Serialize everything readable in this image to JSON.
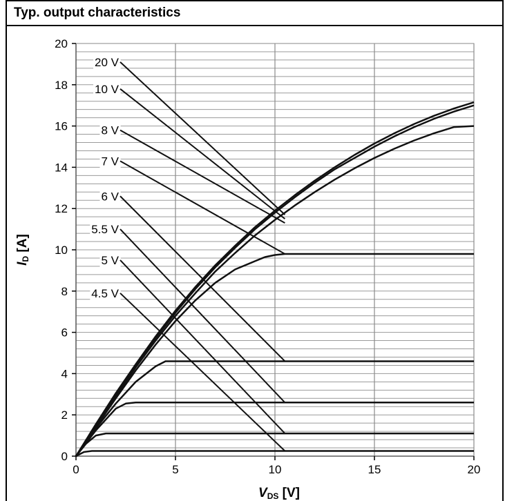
{
  "chart_data": {
    "type": "line",
    "title": "Typ. output characteristics",
    "xlabel": {
      "main": "V",
      "sub": "DS",
      "unit": " [V]"
    },
    "ylabel": {
      "main": "I",
      "sub": "D",
      "unit": " [A]"
    },
    "xlim": [
      0,
      20
    ],
    "ylim": [
      0,
      20
    ],
    "x_ticks": [
      "0",
      "5",
      "10",
      "15",
      "20"
    ],
    "y_ticks": [
      "0",
      "2",
      "4",
      "6",
      "8",
      "10",
      "12",
      "14",
      "16",
      "18",
      "20"
    ],
    "x_tick_values": [
      0,
      5,
      10,
      15,
      20
    ],
    "y_tick_values": [
      0,
      2,
      4,
      6,
      8,
      10,
      12,
      14,
      16,
      18,
      20
    ],
    "grid": {
      "major_x": true,
      "major_y": true,
      "minor_y_step": 0.4
    },
    "series": [
      {
        "name": "20 V",
        "label_y": 19.1,
        "pointer_to": [
          10.5,
          11.7
        ],
        "x": [
          0,
          1,
          2,
          3,
          4,
          5,
          6,
          7,
          8,
          9,
          10,
          11,
          12,
          13,
          14,
          15,
          16,
          17,
          18,
          19,
          20
        ],
        "y": [
          0,
          1.55,
          3.05,
          4.45,
          5.8,
          7.05,
          8.2,
          9.25,
          10.2,
          11.1,
          11.9,
          12.65,
          13.35,
          14.0,
          14.6,
          15.15,
          15.65,
          16.1,
          16.5,
          16.85,
          17.15
        ]
      },
      {
        "name": "10 V",
        "label_y": 17.8,
        "pointer_to": [
          10.5,
          11.5
        ],
        "x": [
          0,
          1,
          2,
          3,
          4,
          5,
          6,
          7,
          8,
          9,
          10,
          11,
          12,
          13,
          14,
          15,
          16,
          17,
          18,
          19,
          20
        ],
        "y": [
          0,
          1.5,
          3.0,
          4.4,
          5.72,
          6.95,
          8.1,
          9.15,
          10.1,
          11.0,
          11.8,
          12.55,
          13.25,
          13.9,
          14.45,
          15.0,
          15.5,
          15.95,
          16.35,
          16.7,
          17.0
        ]
      },
      {
        "name": "8 V",
        "label_y": 15.8,
        "pointer_to": [
          10.5,
          11.3
        ],
        "x": [
          0,
          1,
          2,
          3,
          4,
          5,
          6,
          7,
          8,
          9,
          10,
          11,
          12,
          13,
          14,
          15,
          16,
          17,
          18,
          19,
          20
        ],
        "y": [
          0,
          1.45,
          2.9,
          4.3,
          5.6,
          6.8,
          7.9,
          8.95,
          9.85,
          10.7,
          11.45,
          12.15,
          12.8,
          13.4,
          13.95,
          14.45,
          14.9,
          15.3,
          15.65,
          15.95,
          16.0
        ]
      },
      {
        "name": "7 V",
        "label_y": 14.3,
        "pointer_to": [
          10.5,
          9.8
        ],
        "x": [
          0,
          1,
          2,
          3,
          4,
          5,
          6,
          7,
          8,
          9,
          9.5,
          10,
          10.5,
          20
        ],
        "y": [
          0,
          1.4,
          2.8,
          4.15,
          5.4,
          6.55,
          7.55,
          8.4,
          9.05,
          9.45,
          9.65,
          9.75,
          9.8,
          9.8
        ]
      },
      {
        "name": "6 V",
        "label_y": 12.6,
        "pointer_to": [
          10.5,
          4.6
        ],
        "x": [
          0,
          1,
          2,
          3,
          4,
          4.5,
          20
        ],
        "y": [
          0,
          1.35,
          2.55,
          3.6,
          4.35,
          4.6,
          4.6
        ]
      },
      {
        "name": "5.5 V",
        "label_y": 11.0,
        "pointer_to": [
          10.5,
          2.6
        ],
        "x": [
          0,
          1,
          2,
          2.5,
          3,
          20
        ],
        "y": [
          0,
          1.25,
          2.3,
          2.55,
          2.6,
          2.6
        ]
      },
      {
        "name": "5 V",
        "label_y": 9.5,
        "pointer_to": [
          10.5,
          1.1
        ],
        "x": [
          0,
          0.5,
          1,
          1.5,
          20
        ],
        "y": [
          0,
          0.6,
          1.0,
          1.1,
          1.1
        ]
      },
      {
        "name": "4.5 V",
        "label_y": 7.9,
        "pointer_to": [
          10.5,
          0.25
        ],
        "x": [
          0,
          0.4,
          0.8,
          20
        ],
        "y": [
          0,
          0.2,
          0.25,
          0.25
        ]
      }
    ]
  }
}
